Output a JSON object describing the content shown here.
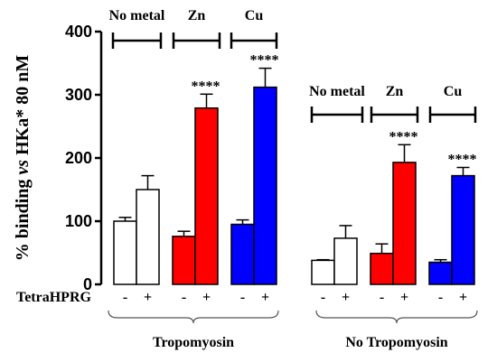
{
  "chart_data": {
    "type": "bar",
    "ylabel_parts": [
      "% binding ",
      "vs",
      " HKa* 80 nM"
    ],
    "ylim": [
      0,
      400
    ],
    "yticks": [
      0,
      100,
      200,
      300,
      400
    ],
    "row_label": "TetraHPRG",
    "panels": [
      {
        "name": "Tropomyosin",
        "groups": [
          {
            "name": "No metal",
            "color": "#ffffff",
            "minus": {
              "value": 100,
              "err": 6
            },
            "plus": {
              "value": 150,
              "err": 22
            },
            "sig": ""
          },
          {
            "name": "Zn",
            "color": "#ff0000",
            "minus": {
              "value": 76,
              "err": 8
            },
            "plus": {
              "value": 279,
              "err": 22
            },
            "sig": "****"
          },
          {
            "name": "Cu",
            "color": "#0000ff",
            "minus": {
              "value": 95,
              "err": 7
            },
            "plus": {
              "value": 312,
              "err": 30
            },
            "sig": "****"
          }
        ]
      },
      {
        "name": "No Tropomyosin",
        "groups": [
          {
            "name": "No metal",
            "color": "#ffffff",
            "minus": {
              "value": 38,
              "err": 1
            },
            "plus": {
              "value": 73,
              "err": 20
            },
            "sig": ""
          },
          {
            "name": "Zn",
            "color": "#ff0000",
            "minus": {
              "value": 49,
              "err": 15
            },
            "plus": {
              "value": 193,
              "err": 28
            },
            "sig": "****"
          },
          {
            "name": "Cu",
            "color": "#0000ff",
            "minus": {
              "value": 35,
              "err": 4
            },
            "plus": {
              "value": 172,
              "err": 13
            },
            "sig": "****"
          }
        ]
      }
    ],
    "minus_label": "-",
    "plus_label": "+"
  }
}
